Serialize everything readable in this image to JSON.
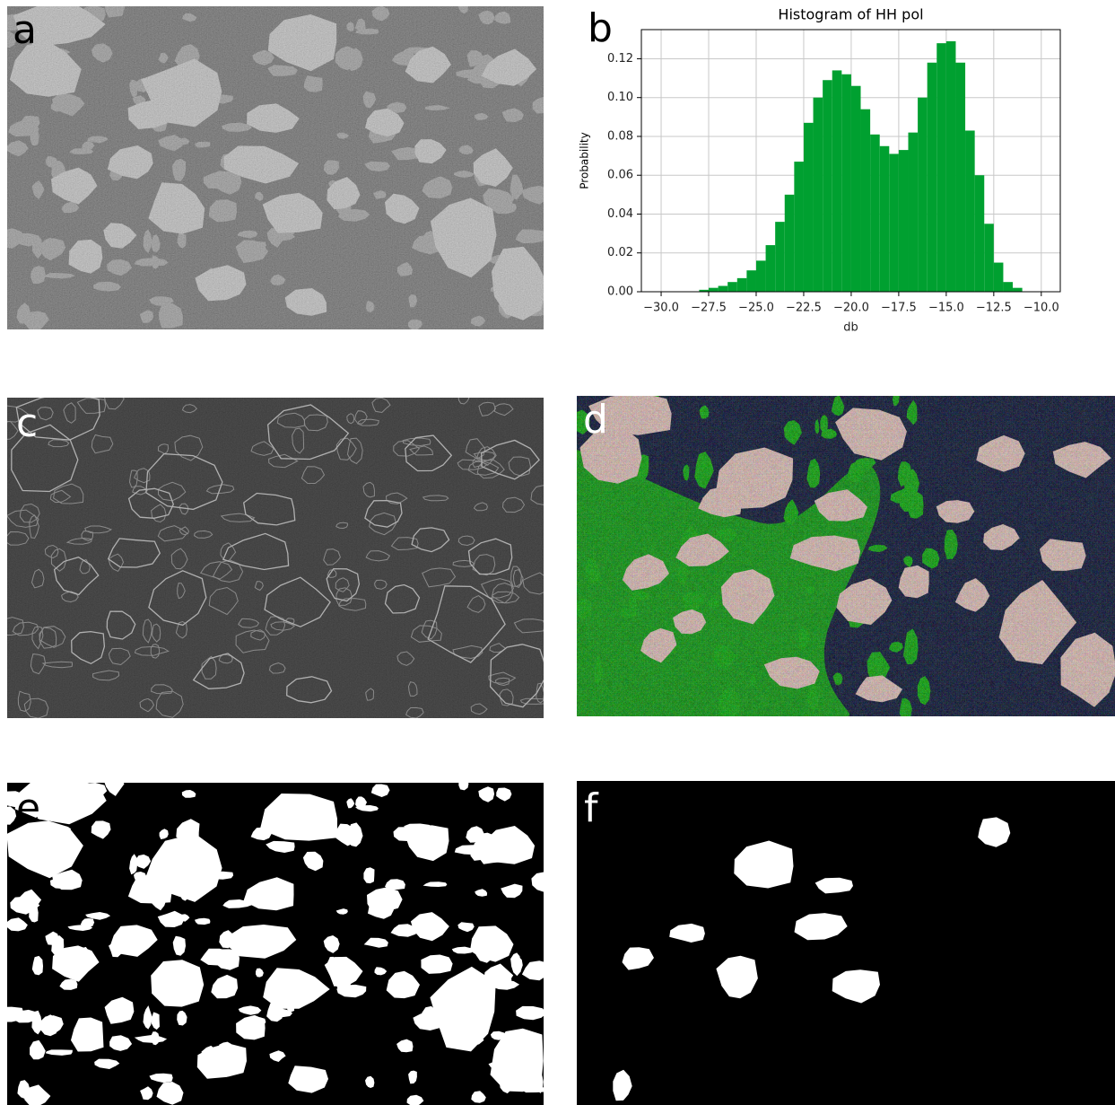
{
  "panel_labels": [
    "a",
    "b",
    "c",
    "d",
    "e",
    "f"
  ],
  "chart_data": {
    "type": "histogram",
    "title": "Histogram of HH pol",
    "x_label": "db",
    "y_label": "Probability",
    "color": "#00a030",
    "grid": true,
    "bins": [
      -28,
      -27.5,
      -27,
      -26.5,
      -26,
      -25.5,
      -25,
      -24.5,
      -24,
      -23.5,
      -23,
      -22.5,
      -22,
      -21.5,
      -21,
      -20.5,
      -20,
      -19.5,
      -19,
      -18.5,
      -18,
      -17.5,
      -17,
      -16.5,
      -16,
      -15.5,
      -15,
      -14.5,
      -14,
      -13.5,
      -13,
      -12.5,
      -12,
      -11.5,
      -11
    ],
    "values": [
      0.001,
      0.002,
      0.003,
      0.005,
      0.007,
      0.011,
      0.016,
      0.024,
      0.036,
      0.05,
      0.067,
      0.087,
      0.1,
      0.109,
      0.114,
      0.112,
      0.106,
      0.094,
      0.081,
      0.075,
      0.071,
      0.073,
      0.082,
      0.1,
      0.118,
      0.128,
      0.129,
      0.118,
      0.083,
      0.06,
      0.035,
      0.015,
      0.005,
      0.002
    ],
    "xlim": [
      -31.04,
      -9.0
    ],
    "ylim": [
      0,
      0.135
    ],
    "xticks": [
      {
        "value": -30,
        "label": "−30.0"
      },
      {
        "value": -27.5,
        "label": "−27.5"
      },
      {
        "value": -25,
        "label": "−25.0"
      },
      {
        "value": -22.5,
        "label": "−22.5"
      },
      {
        "value": -20,
        "label": "−20.0"
      },
      {
        "value": -17.5,
        "label": "−17.5"
      },
      {
        "value": -15,
        "label": "−15.0"
      },
      {
        "value": -12.5,
        "label": "−12.5"
      },
      {
        "value": -10,
        "label": "−10.0"
      }
    ],
    "yticks": [
      {
        "value": 0,
        "label": "0.00"
      },
      {
        "value": 0.02,
        "label": "0.02"
      },
      {
        "value": 0.04,
        "label": "0.04"
      },
      {
        "value": 0.06,
        "label": "0.06"
      },
      {
        "value": 0.08,
        "label": "0.08"
      },
      {
        "value": 0.1,
        "label": "0.10"
      },
      {
        "value": 0.12,
        "label": "0.12"
      }
    ]
  }
}
